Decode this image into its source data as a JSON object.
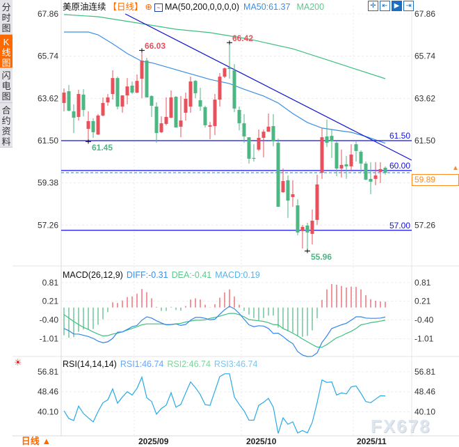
{
  "sidebar": {
    "tabs": [
      {
        "label": [
          "分",
          "时",
          "图"
        ],
        "active": false
      },
      {
        "label": [
          "K",
          "线",
          "图"
        ],
        "active": true
      },
      {
        "label": [
          "闪",
          "电",
          "图"
        ],
        "active": false
      },
      {
        "label": [
          "合",
          "约",
          "资",
          "料"
        ],
        "active": false
      }
    ]
  },
  "header": {
    "symbol": "美原油连续",
    "period": "【日线】",
    "ma_params": "MA(50,200,0,0,0,0)",
    "ma50": "MA50:61.37",
    "ma200": "MA200"
  },
  "toolbar": {
    "icons": [
      "crosshair-icon",
      "zoom-fit-icon",
      "chart-step-icon",
      "move-right-icon"
    ],
    "active_index": 2
  },
  "footer": {
    "period_label": "日线",
    "period_icon": "▲"
  },
  "watermark": "FX678",
  "colors": {
    "up": "#e8505b",
    "down": "#4cb783",
    "ma50": "#3a8ee6",
    "ma200": "#3cbf7f",
    "level": "#1010e0",
    "current": "#ff8a1f",
    "accent": "#ff6a00"
  },
  "chart_data": [
    {
      "type": "candlestick",
      "title": "美原油连续",
      "yticks": [
        "67.86",
        "65.74",
        "63.62",
        "61.50",
        "59.38",
        "57.26"
      ],
      "ylim": [
        55.5,
        68.3
      ],
      "xticks": [
        "2025/09",
        "2025/10",
        "2025/11"
      ],
      "xtick_candle_index": [
        15,
        37,
        60
      ],
      "ohlc": [
        [
          63.39,
          64.12,
          62.97,
          63.91
        ],
        [
          63.98,
          64.29,
          62.97,
          63.0
        ],
        [
          62.97,
          63.32,
          61.88,
          62.65
        ],
        [
          62.69,
          64.05,
          62.51,
          63.84
        ],
        [
          63.81,
          64.08,
          62.72,
          63.04
        ],
        [
          62.09,
          62.97,
          61.45,
          62.48
        ],
        [
          62.48,
          62.62,
          61.64,
          61.92
        ],
        [
          61.81,
          62.83,
          61.78,
          62.76
        ],
        [
          62.76,
          63.67,
          62.72,
          63.39
        ],
        [
          63.42,
          63.84,
          63.25,
          63.67
        ],
        [
          63.84,
          65.03,
          63.56,
          64.64
        ],
        [
          64.64,
          64.71,
          63.07,
          63.21
        ],
        [
          63.21,
          63.77,
          62.9,
          63.77
        ],
        [
          63.77,
          64.64,
          63.32,
          64.22
        ],
        [
          64.26,
          64.47,
          63.84,
          63.91
        ],
        [
          63.91,
          64.82,
          63.88,
          64.5
        ],
        [
          64.61,
          66.03,
          63.63,
          65.52
        ],
        [
          65.52,
          65.66,
          63.67,
          63.67
        ],
        [
          63.74,
          63.77,
          62.69,
          63.25
        ],
        [
          63.21,
          63.42,
          61.4,
          61.88
        ],
        [
          61.92,
          62.72,
          61.88,
          62.37
        ],
        [
          62.34,
          63.67,
          62.27,
          62.69
        ],
        [
          62.65,
          64.02,
          62.62,
          63.67
        ],
        [
          63.7,
          63.74,
          62.16,
          62.16
        ],
        [
          62.2,
          63.74,
          61.67,
          62.51
        ],
        [
          62.9,
          63.91,
          62.51,
          63.6
        ],
        [
          63.21,
          64.71,
          62.9,
          64.47
        ],
        [
          64.5,
          64.54,
          63.63,
          63.88
        ],
        [
          63.53,
          64.15,
          63.0,
          63.21
        ],
        [
          63.18,
          63.25,
          62.16,
          62.27
        ],
        [
          62.2,
          62.44,
          61.57,
          62.27
        ],
        [
          62.23,
          63.84,
          61.78,
          63.56
        ],
        [
          63.56,
          64.89,
          63.21,
          64.71
        ],
        [
          64.71,
          65.17,
          64.64,
          65.13
        ],
        [
          65.17,
          66.42,
          64.61,
          65.1
        ],
        [
          65.03,
          65.34,
          62.93,
          63.11
        ],
        [
          63.04,
          63.21,
          62.02,
          62.37
        ],
        [
          62.37,
          62.83,
          61.39,
          61.71
        ],
        [
          61.67,
          61.67,
          60.35,
          60.59
        ],
        [
          60.63,
          61.32,
          60.45,
          60.59
        ],
        [
          61.05,
          62.06,
          60.98,
          61.64
        ],
        [
          61.64,
          62.06,
          60.66,
          61.95
        ],
        [
          61.95,
          62.86,
          61.95,
          62.2
        ],
        [
          62.23,
          62.83,
          61.22,
          61.46
        ],
        [
          61.39,
          61.6,
          58.18,
          58.18
        ],
        [
          58.91,
          60.1,
          58.88,
          59.47
        ],
        [
          59.51,
          59.75,
          57.62,
          58.49
        ],
        [
          58.67,
          59.51,
          58.18,
          58.81
        ],
        [
          58.25,
          58.56,
          56.75,
          56.89
        ],
        [
          56.96,
          57.27,
          56.08,
          57.17
        ],
        [
          57.24,
          57.38,
          55.96,
          56.89
        ],
        [
          56.82,
          58.04,
          56.29,
          57.48
        ],
        [
          57.52,
          59.79,
          57.27,
          59.3
        ],
        [
          59.89,
          62.13,
          59.58,
          61.67
        ],
        [
          61.71,
          62.55,
          61.18,
          61.39
        ],
        [
          61.74,
          62.09,
          60.63,
          61.46
        ],
        [
          61.39,
          61.46,
          59.72,
          60.1
        ],
        [
          60.1,
          61.05,
          59.65,
          60.28
        ],
        [
          60.31,
          60.73,
          59.58,
          60.21
        ],
        [
          60.21,
          61.32,
          59.96,
          60.8
        ],
        [
          61.32,
          61.46,
          60.45,
          60.98
        ],
        [
          60.94,
          61.01,
          59.89,
          60.35
        ],
        [
          60.35,
          60.45,
          59.51,
          59.54
        ],
        [
          59.58,
          60.42,
          58.81,
          59.44
        ],
        [
          59.58,
          60.42,
          59.26,
          59.75
        ],
        [
          59.93,
          60.42,
          59.37,
          60.07
        ],
        [
          60.14,
          60.21,
          59.79,
          59.89
        ]
      ],
      "ma50": [
        [
          0,
          66.95
        ],
        [
          5,
          66.95
        ],
        [
          7,
          66.81
        ],
        [
          10,
          66.36
        ],
        [
          13,
          65.87
        ],
        [
          16,
          65.48
        ],
        [
          18,
          65.41
        ],
        [
          23,
          65.06
        ],
        [
          30,
          64.57
        ],
        [
          34,
          64.36
        ],
        [
          37,
          64.08
        ],
        [
          41,
          63.74
        ],
        [
          44,
          63.39
        ],
        [
          47,
          62.86
        ],
        [
          50,
          62.41
        ],
        [
          53,
          62.13
        ],
        [
          56,
          62.02
        ],
        [
          59,
          61.92
        ],
        [
          62,
          61.71
        ],
        [
          66,
          61.37
        ]
      ],
      "ma200": [
        [
          0,
          67.83
        ],
        [
          7,
          67.72
        ],
        [
          15,
          67.41
        ],
        [
          23,
          67.09
        ],
        [
          30,
          66.92
        ],
        [
          38,
          66.6
        ],
        [
          47,
          66.11
        ],
        [
          55,
          65.48
        ],
        [
          66,
          64.61
        ]
      ],
      "trendline": {
        "from": [
          12.6,
          67.86
        ],
        "to": [
          71.4,
          60.52
        ]
      },
      "levels": [
        {
          "value": 61.5,
          "label": "61.50"
        },
        {
          "value": 60.0,
          "label": "60.00"
        },
        {
          "value": 57.0,
          "label": "57.00"
        }
      ],
      "current_price": {
        "value": 59.89,
        "label": "59.89"
      },
      "annotations": [
        {
          "label": "66.03",
          "kind": "high"
        },
        {
          "label": "66.42",
          "kind": "high"
        },
        {
          "label": "61.45",
          "kind": "low"
        },
        {
          "label": "55.96",
          "kind": "low"
        }
      ]
    },
    {
      "type": "bar",
      "title": "MACD(26,12,9)",
      "legend": [
        "DIFF:-0.31",
        "DEA:-0.41",
        "MACD:0.19"
      ],
      "yticks": [
        "0.81",
        "0.21",
        "-0.40",
        "-1.01"
      ],
      "macd": [
        -0.9,
        -0.98,
        -0.96,
        -0.79,
        -0.71,
        -0.71,
        -0.7,
        -0.56,
        -0.38,
        -0.15,
        0.17,
        0.15,
        0.23,
        0.34,
        0.36,
        0.45,
        0.6,
        0.5,
        0.3,
        0.02,
        -0.11,
        -0.11,
        0.02,
        -0.08,
        -0.1,
        0.05,
        0.26,
        0.3,
        0.26,
        0.09,
        0.01,
        0.11,
        0.32,
        0.49,
        0.59,
        0.36,
        0.09,
        -0.11,
        -0.23,
        -0.34,
        -0.41,
        -0.34,
        -0.26,
        -0.26,
        -0.65,
        -0.69,
        -0.77,
        -0.81,
        -0.91,
        -0.95,
        -0.92,
        -0.74,
        -0.35,
        0.25,
        0.59,
        0.76,
        0.74,
        0.7,
        0.65,
        0.68,
        0.67,
        0.59,
        0.4,
        0.27,
        0.22,
        0.2,
        0.19
      ],
      "diff": [
        -0.68,
        -0.75,
        -0.86,
        -0.86,
        -0.9,
        -0.94,
        -1.0,
        -1.09,
        -1.14,
        -1.11,
        -1.0,
        -0.8,
        -0.79,
        -0.71,
        -0.62,
        -0.58,
        -0.41,
        -0.3,
        -0.34,
        -0.43,
        -0.5,
        -0.56,
        -0.55,
        -0.53,
        -0.58,
        -0.55,
        -0.41,
        -0.32,
        -0.32,
        -0.35,
        -0.4,
        -0.38,
        -0.22,
        -0.07,
        0.04,
        -0.04,
        -0.19,
        -0.38,
        -0.56,
        -0.62,
        -0.59,
        -0.6,
        -0.68,
        -0.84,
        -0.83,
        -0.94,
        -1.07,
        -1.17,
        -1.43,
        -1.54,
        -1.59,
        -1.58,
        -1.47,
        -1.13,
        -0.92,
        -0.68,
        -0.62,
        -0.56,
        -0.51,
        -0.41,
        -0.3,
        -0.3,
        -0.34,
        -0.35,
        -0.35,
        -0.34,
        -0.31
      ],
      "dea": [
        -0.23,
        -0.34,
        -0.45,
        -0.55,
        -0.64,
        -0.71,
        -0.79,
        -0.86,
        -0.92,
        -0.91,
        -0.86,
        -0.83,
        -0.79,
        -0.73,
        -0.68,
        -0.62,
        -0.56,
        -0.53,
        -0.53,
        -0.53,
        -0.53,
        -0.55,
        -0.55,
        -0.53,
        -0.51,
        -0.47,
        -0.44,
        -0.41,
        -0.41,
        -0.4,
        -0.35,
        -0.32,
        -0.28,
        -0.23,
        -0.19,
        -0.19,
        -0.23,
        -0.3,
        -0.39,
        -0.41,
        -0.43,
        -0.45,
        -0.49,
        -0.55,
        -0.56,
        -0.68,
        -0.75,
        -0.83,
        -0.92,
        -1.02,
        -1.11,
        -1.2,
        -1.28,
        -1.29,
        -1.2,
        -1.09,
        -0.98,
        -0.92,
        -0.84,
        -0.77,
        -0.68,
        -0.56,
        -0.53,
        -0.49,
        -0.47,
        -0.44,
        -0.41
      ]
    },
    {
      "type": "line",
      "title": "RSI(14,14,14)",
      "legend": [
        "RSI1:46.74",
        "RSI2:46.74",
        "RSI3:46.74"
      ],
      "yticks": [
        "56.81",
        "48.46",
        "40.10"
      ],
      "rsi": [
        40.5,
        37.3,
        36.5,
        42.5,
        39.4,
        37.6,
        35.9,
        40.2,
        43.9,
        45.1,
        49.7,
        43.7,
        46.3,
        48.5,
        47.1,
        49.9,
        54.6,
        46.0,
        44.4,
        39.1,
        41.5,
        42.9,
        48.1,
        42.0,
        43.2,
        48.0,
        52.6,
        50.2,
        47.3,
        43.1,
        42.8,
        48.8,
        54.8,
        56.0,
        56.0,
        46.3,
        43.2,
        40.5,
        36.6,
        36.6,
        42.8,
        44.1,
        45.7,
        42.0,
        31.1,
        37.6,
        34.9,
        35.9,
        31.3,
        32.3,
        31.3,
        35.7,
        43.9,
        53.4,
        52.4,
        52.6,
        47.1,
        48.0,
        47.6,
        50.5,
        50.9,
        47.8,
        44.4,
        43.9,
        45.4,
        46.8,
        46.74
      ]
    }
  ]
}
